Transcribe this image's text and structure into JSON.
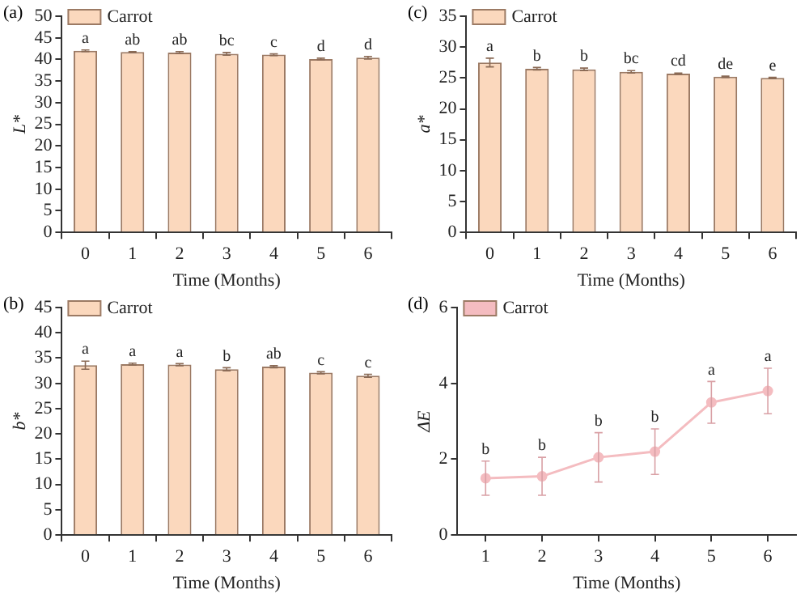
{
  "chart_data": [
    {
      "type": "bar",
      "title": "(a)",
      "xlabel": "Time (Months)",
      "ylabel": "L*",
      "categories": [
        "0",
        "1",
        "2",
        "3",
        "4",
        "5",
        "6"
      ],
      "series": [
        {
          "name": "Carrot",
          "color": "#fbd8bd",
          "values": [
            42.0,
            41.7,
            41.6,
            41.3,
            41.1,
            40.1,
            40.4
          ],
          "errors": [
            0.2,
            0.1,
            0.2,
            0.3,
            0.2,
            0.2,
            0.3
          ]
        }
      ],
      "ylim": [
        0,
        50
      ],
      "yticks": [
        0,
        5,
        10,
        15,
        20,
        25,
        30,
        35,
        40,
        45,
        50
      ],
      "grid": false,
      "legend": "top left",
      "annotations": [
        {
          "text": "a",
          "x": "0",
          "y": 42.0
        },
        {
          "text": "ab",
          "x": "1",
          "y": 41.7
        },
        {
          "text": "ab",
          "x": "2",
          "y": 41.6
        },
        {
          "text": "bc",
          "x": "3",
          "y": 41.3
        },
        {
          "text": "c",
          "x": "4",
          "y": 41.1
        },
        {
          "text": "d",
          "x": "5",
          "y": 40.1
        },
        {
          "text": "d",
          "x": "6",
          "y": 40.4
        }
      ]
    },
    {
      "type": "bar",
      "title": "(c)",
      "xlabel": "Time (Months)",
      "ylabel": "a*",
      "categories": [
        "0",
        "1",
        "2",
        "3",
        "4",
        "5",
        "6"
      ],
      "series": [
        {
          "name": "Carrot",
          "color": "#fbd8bd",
          "values": [
            27.5,
            26.5,
            26.4,
            26.0,
            25.7,
            25.2,
            25.0
          ],
          "errors": [
            0.7,
            0.2,
            0.2,
            0.2,
            0.1,
            0.1,
            0.1
          ]
        }
      ],
      "ylim": [
        0,
        35
      ],
      "yticks": [
        0,
        5,
        10,
        15,
        20,
        25,
        30,
        35
      ],
      "grid": false,
      "legend": "top left",
      "annotations": [
        {
          "text": "a",
          "x": "0",
          "y": 27.5
        },
        {
          "text": "b",
          "x": "1",
          "y": 26.5
        },
        {
          "text": "b",
          "x": "2",
          "y": 26.4
        },
        {
          "text": "bc",
          "x": "3",
          "y": 26.0
        },
        {
          "text": "cd",
          "x": "4",
          "y": 25.7
        },
        {
          "text": "de",
          "x": "5",
          "y": 25.2
        },
        {
          "text": "e",
          "x": "6",
          "y": 25.0
        }
      ]
    },
    {
      "type": "bar",
      "title": "(b)",
      "xlabel": "Time (Months)",
      "ylabel": "b*",
      "categories": [
        "0",
        "1",
        "2",
        "3",
        "4",
        "5",
        "6"
      ],
      "series": [
        {
          "name": "Carrot",
          "color": "#fbd8bd",
          "values": [
            33.6,
            33.8,
            33.7,
            32.8,
            33.3,
            32.1,
            31.5
          ],
          "errors": [
            0.8,
            0.2,
            0.2,
            0.3,
            0.2,
            0.2,
            0.3
          ]
        }
      ],
      "ylim": [
        0,
        45
      ],
      "yticks": [
        0,
        5,
        10,
        15,
        20,
        25,
        30,
        35,
        40,
        45
      ],
      "grid": false,
      "legend": "top left",
      "annotations": [
        {
          "text": "a",
          "x": "0",
          "y": 33.6
        },
        {
          "text": "a",
          "x": "1",
          "y": 33.8
        },
        {
          "text": "a",
          "x": "2",
          "y": 33.7
        },
        {
          "text": "b",
          "x": "3",
          "y": 32.8
        },
        {
          "text": "ab",
          "x": "4",
          "y": 33.3
        },
        {
          "text": "c",
          "x": "5",
          "y": 32.1
        },
        {
          "text": "c",
          "x": "6",
          "y": 31.5
        }
      ]
    },
    {
      "type": "line",
      "title": "(d)",
      "xlabel": "Time (Months)",
      "ylabel": "ΔE",
      "categories": [
        "1",
        "2",
        "3",
        "4",
        "5",
        "6"
      ],
      "series": [
        {
          "name": "Carrot",
          "color": "#f4bcc0",
          "values": [
            1.5,
            1.55,
            2.05,
            2.2,
            3.5,
            3.8
          ],
          "errors": [
            0.45,
            0.5,
            0.65,
            0.6,
            0.55,
            0.6
          ]
        }
      ],
      "ylim": [
        0,
        6
      ],
      "yticks": [
        0,
        2,
        4,
        6
      ],
      "grid": false,
      "legend": "top left",
      "marker": "circle",
      "line_style": "solid",
      "annotations": [
        {
          "text": "b",
          "x": "1",
          "y": 1.5
        },
        {
          "text": "b",
          "x": "2",
          "y": 1.55
        },
        {
          "text": "b",
          "x": "3",
          "y": 2.05
        },
        {
          "text": "b",
          "x": "4",
          "y": 2.2
        },
        {
          "text": "a",
          "x": "5",
          "y": 3.5
        },
        {
          "text": "a",
          "x": "6",
          "y": 3.8
        }
      ]
    }
  ]
}
